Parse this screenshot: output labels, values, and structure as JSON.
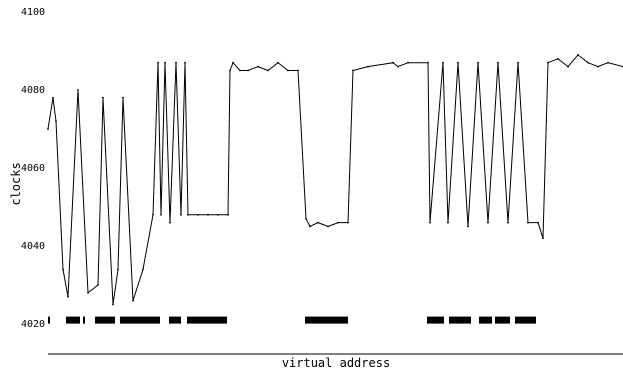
{
  "chart_data": {
    "type": "line",
    "title": "",
    "xlabel": "virtual address",
    "ylabel": "clocks",
    "ylim": [
      4020,
      4100
    ],
    "yticks": [
      4020,
      4040,
      4060,
      4080,
      4100
    ],
    "ytick_labels": [
      "4020",
      "4040",
      "4060",
      "4080",
      "4100"
    ],
    "xlim": [
      0,
      575
    ],
    "grid": false,
    "legend": "none",
    "line_color": "#000000",
    "marker_color": "#000000",
    "marker_band_value": 4021,
    "series": [
      {
        "x": [
          0,
          5,
          8,
          15,
          20,
          30,
          40,
          50,
          55,
          65,
          70,
          75,
          85,
          95,
          105,
          110,
          113,
          117,
          122,
          128,
          133,
          137,
          140,
          150,
          160,
          170,
          180,
          182,
          185,
          192,
          200,
          210,
          220,
          230,
          240,
          250,
          258,
          262,
          270,
          280,
          290,
          300,
          305,
          320,
          345,
          350,
          360,
          380,
          382,
          395,
          400,
          410,
          420,
          430,
          440,
          450,
          460,
          470,
          480,
          490,
          495,
          500,
          510,
          520,
          530,
          540,
          550,
          560,
          575
        ],
        "y": [
          4070,
          4078,
          4072,
          4034,
          4027,
          4080,
          4028,
          4030,
          4078,
          4025,
          4034,
          4078,
          4026,
          4034,
          4048,
          4087,
          4048,
          4087,
          4046,
          4087,
          4048,
          4087,
          4048,
          4048,
          4048,
          4048,
          4048,
          4085,
          4087,
          4085,
          4085,
          4086,
          4085,
          4087,
          4085,
          4085,
          4047,
          4045,
          4046,
          4045,
          4046,
          4046,
          4085,
          4086,
          4087,
          4086,
          4087,
          4087,
          4046,
          4087,
          4046,
          4087,
          4045,
          4087,
          4046,
          4087,
          4046,
          4087,
          4046,
          4046,
          4042,
          4087,
          4088,
          4086,
          4089,
          4087,
          4086,
          4087,
          4086
        ]
      }
    ],
    "marker_segments": [
      [
        0,
        2
      ],
      [
        18,
        32
      ],
      [
        35,
        37
      ],
      [
        47,
        67
      ],
      [
        72,
        112
      ],
      [
        121,
        133
      ],
      [
        139,
        179
      ],
      [
        257,
        300
      ],
      [
        379,
        396
      ],
      [
        401,
        423
      ],
      [
        431,
        444
      ],
      [
        447,
        462
      ],
      [
        467,
        488
      ]
    ]
  }
}
